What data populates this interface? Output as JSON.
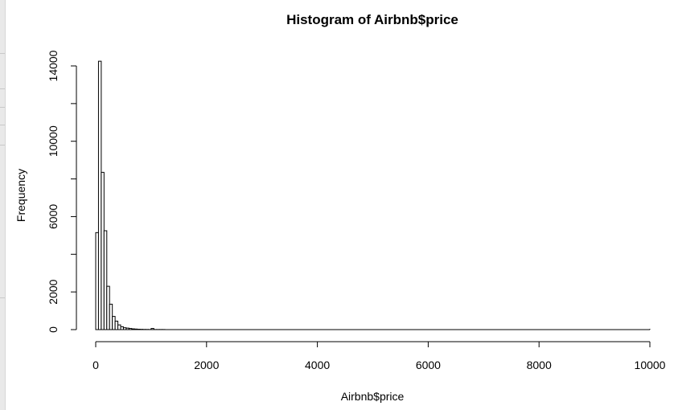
{
  "chart_data": {
    "type": "bar",
    "title": "Histogram of Airbnb$price",
    "xlabel": "Airbnb$price",
    "ylabel": "Frequency",
    "xlim": [
      0,
      10000
    ],
    "ylim": [
      0,
      14000
    ],
    "x_ticks": [
      "0",
      "2000",
      "4000",
      "6000",
      "8000",
      "10000"
    ],
    "y_ticks": [
      "0",
      "2000",
      "6000",
      "10000",
      "14000"
    ],
    "y_tick_marks": [
      0,
      2000,
      4000,
      6000,
      8000,
      10000,
      12000,
      14000
    ],
    "bin_width": 50,
    "bins_start": 0,
    "values": [
      5150,
      14250,
      8350,
      5250,
      2300,
      1350,
      700,
      450,
      250,
      150,
      100,
      80,
      60,
      40,
      30,
      20,
      15,
      10,
      8,
      5,
      60,
      5,
      5,
      5,
      5
    ]
  },
  "ui": {
    "bar_color": "#ffffff",
    "stroke_color": "#000000"
  }
}
